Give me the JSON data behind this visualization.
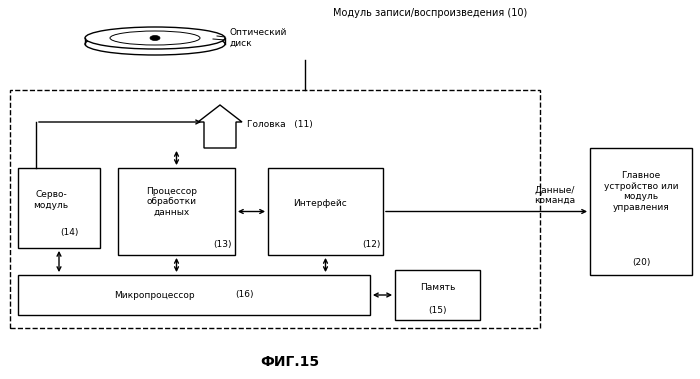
{
  "title": "ФИГ.15",
  "top_label": "Модуль записи/воспроизведения (10)",
  "disk_label": "Оптический\nдиск",
  "head_label": "Головка",
  "head_num": "(11)",
  "servo_label": "Серво-\nмодуль",
  "servo_num": "(14)",
  "proc_label": "Процессор\nобработки\nданных",
  "proc_num": "(13)",
  "iface_label": "Интерфейс",
  "iface_num": "(12)",
  "micro_label": "Микропроцессор",
  "micro_num": "(16)",
  "mem_label": "Память",
  "mem_num": "(15)",
  "data_label": "Данные/\nкоманда",
  "main_label": "Главное\nустройство или\nмодуль\nуправления",
  "main_num": "(20)",
  "bg_color": "#ffffff",
  "box_color": "#000000",
  "text_color": "#000000"
}
